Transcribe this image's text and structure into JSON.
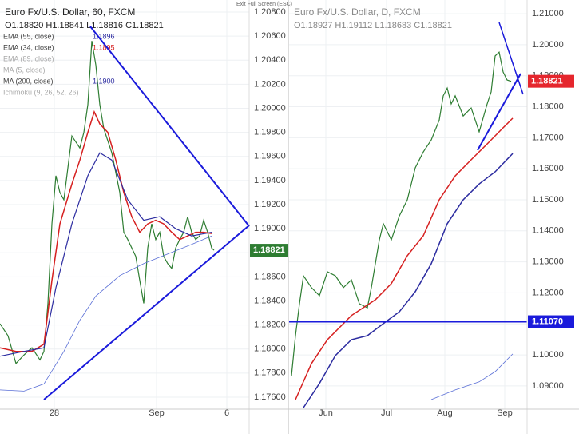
{
  "toolbar": {
    "exit": "Exit Full Screen (ESC)"
  },
  "chart_data": [
    {
      "type": "line",
      "title": "Euro Fx/U.S. Dollar, 60, FXCM",
      "ohlc": "O1.18820 H1.18841 L1.18816 C1.18821",
      "legend": [
        {
          "label": "EMA (55, close)",
          "value": 1.1896,
          "color": "#2c2ca0"
        },
        {
          "label": "EMA (34, close)",
          "value": 1.1895,
          "color": "#d62020"
        },
        {
          "label": "EMA (89, close)"
        },
        {
          "label": "MA (5, close)"
        },
        {
          "label": "MA (200, close)",
          "value": 1.19,
          "value_label": "1.1900",
          "color": "#2c2ca0"
        },
        {
          "label": "Ichimoku (9, 26, 52, 26)"
        }
      ],
      "xlim": [
        0,
        312
      ],
      "xticks": [
        {
          "value": 68,
          "label": "28"
        },
        {
          "value": 196,
          "label": "Sep"
        },
        {
          "value": 284,
          "label": "6"
        }
      ],
      "ylim": [
        1.175,
        1.209
      ],
      "yticks": [
        {
          "value": 1.176,
          "label": "1.17600"
        },
        {
          "value": 1.178,
          "label": "1.17800"
        },
        {
          "value": 1.18,
          "label": "1.18000"
        },
        {
          "value": 1.182,
          "label": "1.18200"
        },
        {
          "value": 1.184,
          "label": "1.18400"
        },
        {
          "value": 1.186,
          "label": "1.18600"
        },
        {
          "value": 1.188,
          "label": "1.18800"
        },
        {
          "value": 1.19,
          "label": "1.19000"
        },
        {
          "value": 1.192,
          "label": "1.19200"
        },
        {
          "value": 1.194,
          "label": "1.19400"
        },
        {
          "value": 1.196,
          "label": "1.19600"
        },
        {
          "value": 1.198,
          "label": "1.19800"
        },
        {
          "value": 1.2,
          "label": "1.20000"
        },
        {
          "value": 1.202,
          "label": "1.20200"
        },
        {
          "value": 1.204,
          "label": "1.20400"
        },
        {
          "value": 1.206,
          "label": "1.20600"
        },
        {
          "value": 1.208,
          "label": "1.20800"
        }
      ],
      "grid": true,
      "series": [
        {
          "color": "#2e7d32",
          "x": [
            0,
            10,
            20,
            30,
            40,
            50,
            55,
            60,
            65,
            70,
            75,
            80,
            90,
            100,
            105,
            110,
            115,
            120,
            125,
            130,
            140,
            150,
            155,
            160,
            170,
            175,
            180,
            185,
            190,
            195,
            200,
            205,
            210,
            215,
            220,
            225,
            230,
            235,
            240,
            245,
            250,
            255,
            260,
            265,
            268
          ],
          "values": [
            1.1821,
            1.1811,
            1.1788,
            1.1795,
            1.1801,
            1.1791,
            1.1798,
            1.1838,
            1.1904,
            1.1944,
            1.193,
            1.1924,
            1.1977,
            1.1967,
            1.198,
            1.2003,
            1.2056,
            1.2036,
            1.2003,
            1.1983,
            1.1963,
            1.193,
            1.1897,
            1.1891,
            1.1877,
            1.1857,
            1.1838,
            1.1884,
            1.1904,
            1.1891,
            1.1897,
            1.1877,
            1.1871,
            1.1867,
            1.1884,
            1.1891,
            1.1897,
            1.191,
            1.1897,
            1.1891,
            1.1894,
            1.1907,
            1.1897,
            1.1884,
            1.18821
          ],
          "width": 1.2
        },
        {
          "color": "#d62020",
          "x": [
            0,
            20,
            40,
            55,
            65,
            75,
            90,
            100,
            110,
            118,
            125,
            135,
            145,
            155,
            165,
            175,
            185,
            195,
            205,
            215,
            225,
            235,
            245,
            255,
            265
          ],
          "values": [
            1.1801,
            1.1798,
            1.1798,
            1.1804,
            1.1857,
            1.1904,
            1.1937,
            1.1957,
            1.198,
            1.1997,
            1.1987,
            1.198,
            1.1957,
            1.193,
            1.191,
            1.1897,
            1.1904,
            1.1907,
            1.1904,
            1.1897,
            1.1891,
            1.1894,
            1.1897,
            1.1897,
            1.1896
          ],
          "width": 1.5
        },
        {
          "color": "#2c2ca0",
          "x": [
            0,
            30,
            55,
            70,
            90,
            110,
            125,
            140,
            160,
            180,
            200,
            220,
            240,
            265
          ],
          "values": [
            1.1794,
            1.1798,
            1.1801,
            1.1851,
            1.1904,
            1.1944,
            1.1963,
            1.1957,
            1.1924,
            1.1907,
            1.191,
            1.19,
            1.1894,
            1.1897
          ],
          "width": 1.2
        },
        {
          "color": "#5a6fd6",
          "x": [
            0,
            30,
            55,
            80,
            100,
            120,
            150,
            180,
            210,
            240,
            265
          ],
          "values": [
            1.1766,
            1.1765,
            1.1771,
            1.1798,
            1.1824,
            1.1844,
            1.1861,
            1.1871,
            1.1879,
            1.1887,
            1.1894
          ],
          "width": 0.8
        }
      ],
      "last": {
        "value": 1.18821,
        "label": "1.18821",
        "color": "#2e7d32"
      }
    },
    {
      "type": "line",
      "title": "Euro Fx/U.S. Dollar, D, FXCM",
      "ohlc": "O1.18927 H1.19112 L1.18683 C1.18821",
      "xlim": [
        0,
        298
      ],
      "xticks": [
        {
          "value": 46,
          "label": "Jun"
        },
        {
          "value": 122,
          "label": "Jul"
        },
        {
          "value": 195,
          "label": "Aug"
        },
        {
          "value": 270,
          "label": "Sep"
        }
      ],
      "ylim": [
        1.0825,
        1.2144
      ],
      "yticks": [
        {
          "value": 1.09,
          "label": "1.09000"
        },
        {
          "value": 1.1,
          "label": "1.10000"
        },
        {
          "value": 1.11,
          "label": "1.11000"
        },
        {
          "value": 1.12,
          "label": "1.12000"
        },
        {
          "value": 1.13,
          "label": "1.13000"
        },
        {
          "value": 1.14,
          "label": "1.14000"
        },
        {
          "value": 1.15,
          "label": "1.15000"
        },
        {
          "value": 1.16,
          "label": "1.16000"
        },
        {
          "value": 1.17,
          "label": "1.17000"
        },
        {
          "value": 1.18,
          "label": "1.18000"
        },
        {
          "value": 1.19,
          "label": "1.19000"
        },
        {
          "value": 1.2,
          "label": "1.20000"
        },
        {
          "value": 1.21,
          "label": "1.21000"
        }
      ],
      "grid": true,
      "series": [
        {
          "color": "#2e7d32",
          "x": [
            3,
            8,
            13,
            18,
            28,
            38,
            48,
            58,
            68,
            78,
            88,
            98,
            103,
            108,
            113,
            118,
            128,
            138,
            148,
            158,
            168,
            178,
            188,
            193,
            198,
            203,
            208,
            218,
            228,
            238,
            248,
            253,
            258,
            263,
            268,
            273,
            278
          ],
          "values": [
            1.0933,
            1.1062,
            1.1165,
            1.1255,
            1.1217,
            1.1191,
            1.1268,
            1.1255,
            1.1217,
            1.1242,
            1.1165,
            1.1152,
            1.1217,
            1.1294,
            1.1371,
            1.1423,
            1.1371,
            1.1448,
            1.15,
            1.1603,
            1.1654,
            1.1693,
            1.1757,
            1.1835,
            1.186,
            1.1809,
            1.1835,
            1.177,
            1.1796,
            1.1719,
            1.1809,
            1.1848,
            1.1964,
            1.1976,
            1.1912,
            1.1886,
            1.18821
          ],
          "width": 1.2
        },
        {
          "color": "#d62020",
          "x": [
            8,
            28,
            48,
            78,
            108,
            128,
            148,
            168,
            188,
            208,
            228,
            248,
            268,
            280
          ],
          "values": [
            1.0856,
            1.0972,
            1.1049,
            1.1127,
            1.1178,
            1.123,
            1.132,
            1.1384,
            1.15,
            1.1577,
            1.1629,
            1.168,
            1.1732,
            1.1763
          ],
          "width": 1.5
        },
        {
          "color": "#2c2ca0",
          "x": [
            18,
            38,
            58,
            78,
            98,
            118,
            138,
            158,
            178,
            198,
            218,
            238,
            258,
            280
          ],
          "values": [
            1.083,
            1.0908,
            1.0998,
            1.1049,
            1.1062,
            1.1101,
            1.1139,
            1.1204,
            1.1294,
            1.1423,
            1.15,
            1.1551,
            1.159,
            1.1649
          ],
          "width": 1.5
        },
        {
          "color": "#5a6fd6",
          "x": [
            178,
            208,
            238,
            258,
            280
          ],
          "values": [
            1.0856,
            1.0887,
            1.0913,
            1.0946,
            1.1003
          ],
          "width": 0.8
        }
      ],
      "last": {
        "value": 1.18821,
        "label": "1.18821",
        "color": "#e5262d"
      },
      "level": {
        "value": 1.1107,
        "label": "1.11070",
        "color": "#1a1adb"
      }
    }
  ]
}
